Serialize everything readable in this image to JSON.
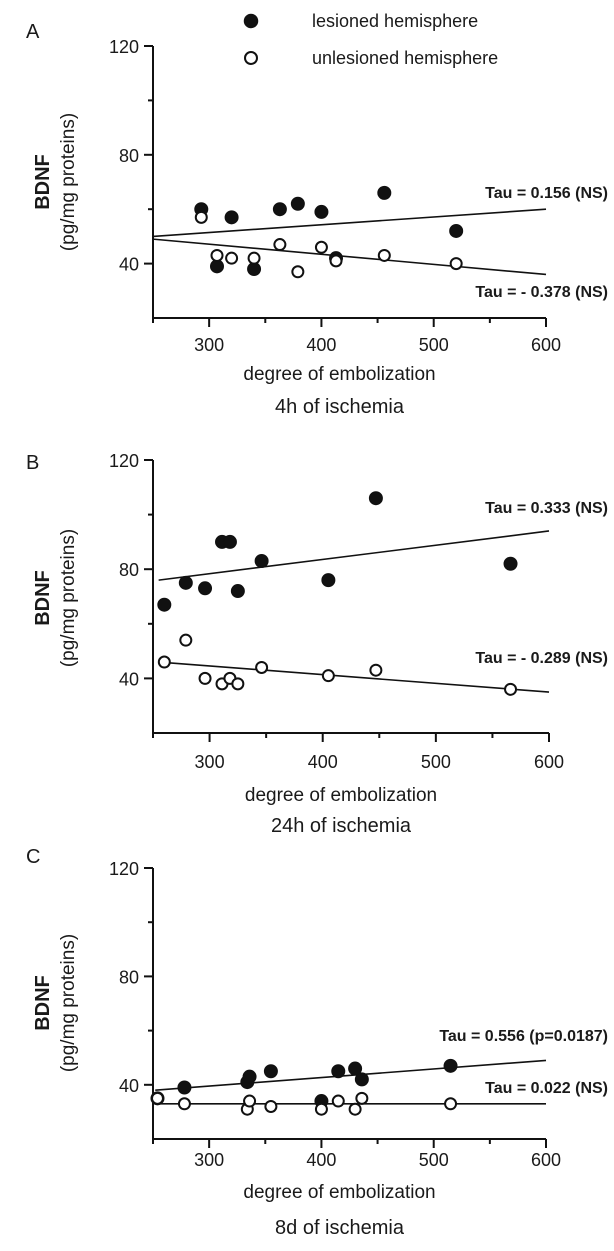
{
  "legend": {
    "lesioned_label": "lesioned hemisphere",
    "unlesioned_label": "unlesioned hemisphere"
  },
  "chart_data": [
    {
      "type": "scatter",
      "panel_label": "A",
      "title": "4h of ischemia",
      "xlabel": "degree of embolization",
      "ylabel_line1": "BDNF",
      "ylabel_line2": "(pg/mg proteins)",
      "xlim": [
        250,
        600
      ],
      "ylim": [
        20,
        120
      ],
      "xticks": [
        300,
        400,
        500,
        600
      ],
      "yticks": [
        40,
        80,
        120
      ],
      "series": [
        {
          "name": "lesioned hemisphere",
          "marker": "filled",
          "points": [
            [
              293,
              60
            ],
            [
              307,
              39
            ],
            [
              320,
              57
            ],
            [
              340,
              38
            ],
            [
              363,
              60
            ],
            [
              379,
              62
            ],
            [
              400,
              59
            ],
            [
              413,
              42
            ],
            [
              456,
              66
            ],
            [
              520,
              52
            ]
          ],
          "fit": {
            "x": [
              250,
              600
            ],
            "y": [
              50,
              60
            ]
          },
          "annotation": "Tau = 0.156 (NS)"
        },
        {
          "name": "unlesioned hemisphere",
          "marker": "open",
          "points": [
            [
              293,
              57
            ],
            [
              307,
              43
            ],
            [
              320,
              42
            ],
            [
              340,
              42
            ],
            [
              363,
              47
            ],
            [
              379,
              37
            ],
            [
              400,
              46
            ],
            [
              413,
              41
            ],
            [
              456,
              43
            ],
            [
              520,
              40
            ]
          ],
          "fit": {
            "x": [
              250,
              600
            ],
            "y": [
              49,
              36
            ]
          },
          "annotation": "Tau = - 0.378 (NS)"
        }
      ]
    },
    {
      "type": "scatter",
      "panel_label": "B",
      "title": "24h of ischemia",
      "xlabel": "degree of embolization",
      "ylabel_line1": "BDNF",
      "ylabel_line2": "(pg/mg proteins)",
      "xlim": [
        250,
        600
      ],
      "ylim": [
        20,
        120
      ],
      "xticks": [
        300,
        400,
        500,
        600
      ],
      "yticks": [
        40,
        80,
        120
      ],
      "series": [
        {
          "name": "lesioned hemisphere",
          "marker": "filled",
          "points": [
            [
              260,
              67
            ],
            [
              279,
              75
            ],
            [
              296,
              73
            ],
            [
              311,
              90
            ],
            [
              318,
              90
            ],
            [
              325,
              72
            ],
            [
              346,
              83
            ],
            [
              405,
              76
            ],
            [
              447,
              106
            ],
            [
              566,
              82
            ]
          ],
          "fit": {
            "x": [
              255,
              600
            ],
            "y": [
              76,
              94
            ]
          },
          "annotation": "Tau = 0.333 (NS)"
        },
        {
          "name": "unlesioned hemisphere",
          "marker": "open",
          "points": [
            [
              260,
              46
            ],
            [
              279,
              54
            ],
            [
              296,
              40
            ],
            [
              311,
              38
            ],
            [
              318,
              40
            ],
            [
              325,
              38
            ],
            [
              346,
              44
            ],
            [
              405,
              41
            ],
            [
              447,
              43
            ],
            [
              566,
              36
            ]
          ],
          "fit": {
            "x": [
              255,
              600
            ],
            "y": [
              46,
              35
            ]
          },
          "annotation": "Tau = - 0.289 (NS)"
        }
      ]
    },
    {
      "type": "scatter",
      "panel_label": "C",
      "title": "8d of ischemia",
      "xlabel": "degree of embolization",
      "ylabel_line1": "BDNF",
      "ylabel_line2": "(pg/mg proteins)",
      "xlim": [
        250,
        600
      ],
      "ylim": [
        20,
        120
      ],
      "xticks": [
        300,
        400,
        500,
        600
      ],
      "yticks": [
        40,
        80,
        120
      ],
      "series": [
        {
          "name": "lesioned hemisphere",
          "marker": "filled",
          "points": [
            [
              254,
              35
            ],
            [
              278,
              39
            ],
            [
              334,
              41
            ],
            [
              336,
              43
            ],
            [
              355,
              45
            ],
            [
              400,
              34
            ],
            [
              415,
              45
            ],
            [
              430,
              46
            ],
            [
              436,
              42
            ],
            [
              515,
              47
            ]
          ],
          "fit": {
            "x": [
              252,
              600
            ],
            "y": [
              38,
              49
            ]
          },
          "annotation": "Tau = 0.556 (p=0.0187)"
        },
        {
          "name": "unlesioned hemisphere",
          "marker": "open",
          "points": [
            [
              254,
              35
            ],
            [
              278,
              33
            ],
            [
              334,
              31
            ],
            [
              336,
              34
            ],
            [
              355,
              32
            ],
            [
              400,
              31
            ],
            [
              415,
              34
            ],
            [
              430,
              31
            ],
            [
              436,
              35
            ],
            [
              515,
              33
            ]
          ],
          "fit": {
            "x": [
              252,
              600
            ],
            "y": [
              33,
              33
            ]
          },
          "annotation": "Tau = 0.022 (NS)"
        }
      ]
    }
  ]
}
